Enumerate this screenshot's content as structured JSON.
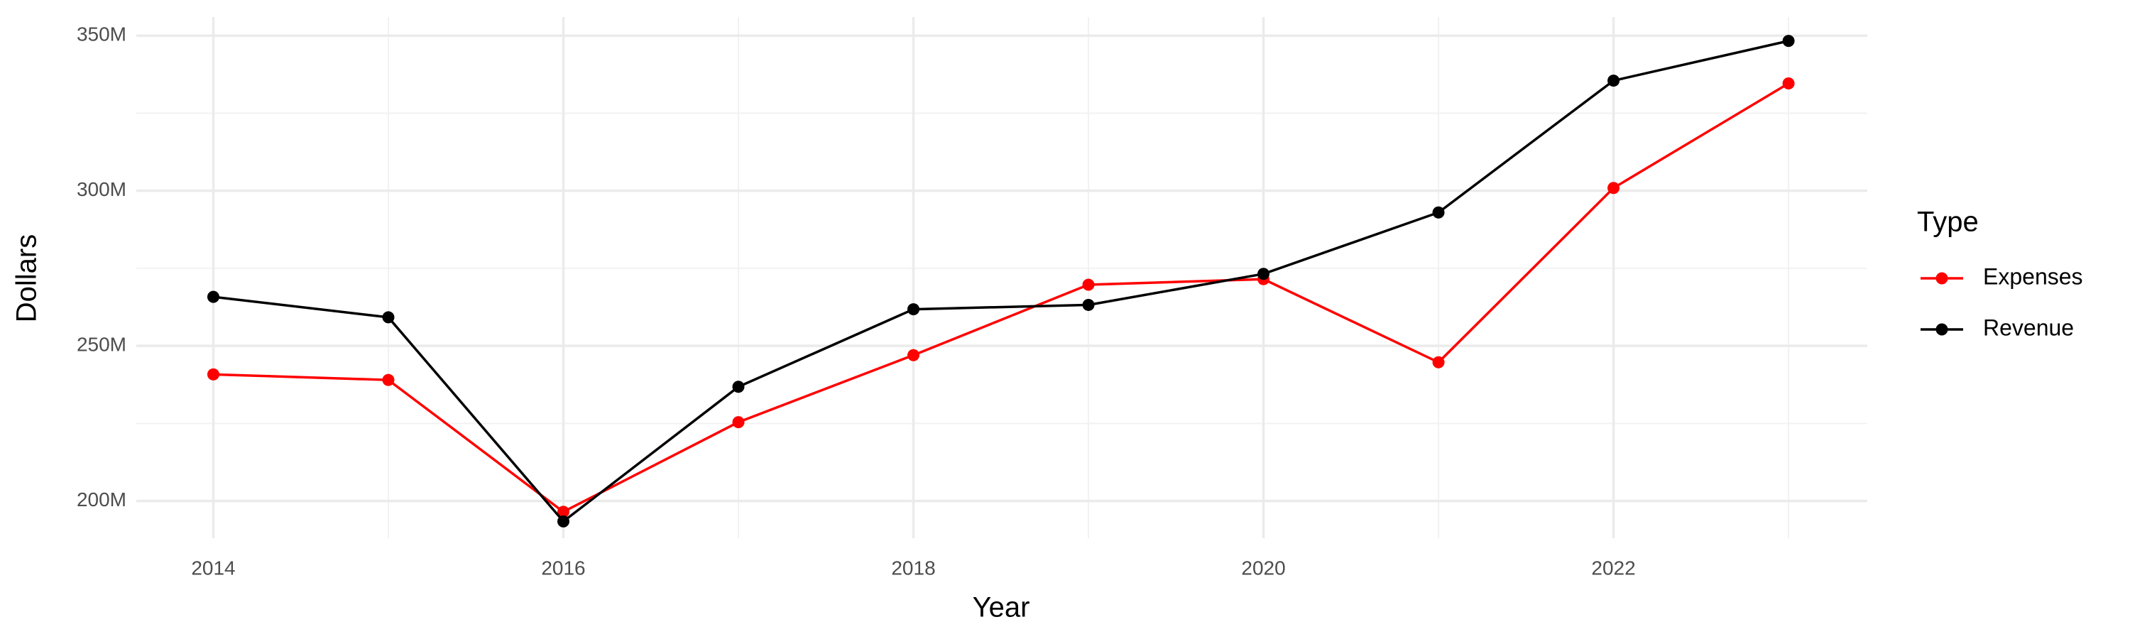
{
  "chart_data": {
    "type": "line",
    "x_label": "Year",
    "y_label": "Dollars",
    "legend_title": "Type",
    "legend": "right",
    "grid": true,
    "x": [
      2014,
      2015,
      2016,
      2017,
      2018,
      2019,
      2020,
      2021,
      2022,
      2023
    ],
    "series": [
      {
        "name": "Expenses",
        "color": "#ff0000",
        "values": [
          240800000,
          239000000,
          196500000,
          225400000,
          247000000,
          269700000,
          271500000,
          244700000,
          300900000,
          334600000
        ]
      },
      {
        "name": "Revenue",
        "color": "#000000",
        "values": [
          265800000,
          259200000,
          193400000,
          236800000,
          261800000,
          263200000,
          273200000,
          293000000,
          335500000,
          348300000
        ]
      }
    ],
    "xlim": [
      2013.56,
      2023.45
    ],
    "xticks": [
      2014,
      2016,
      2018,
      2020,
      2022
    ],
    "ylim": [
      188000000,
      356000000
    ],
    "yticks": [
      {
        "value": 200000000,
        "label": "200M"
      },
      {
        "value": 250000000,
        "label": "250M"
      },
      {
        "value": 300000000,
        "label": "300M"
      },
      {
        "value": 350000000,
        "label": "350M"
      }
    ]
  }
}
